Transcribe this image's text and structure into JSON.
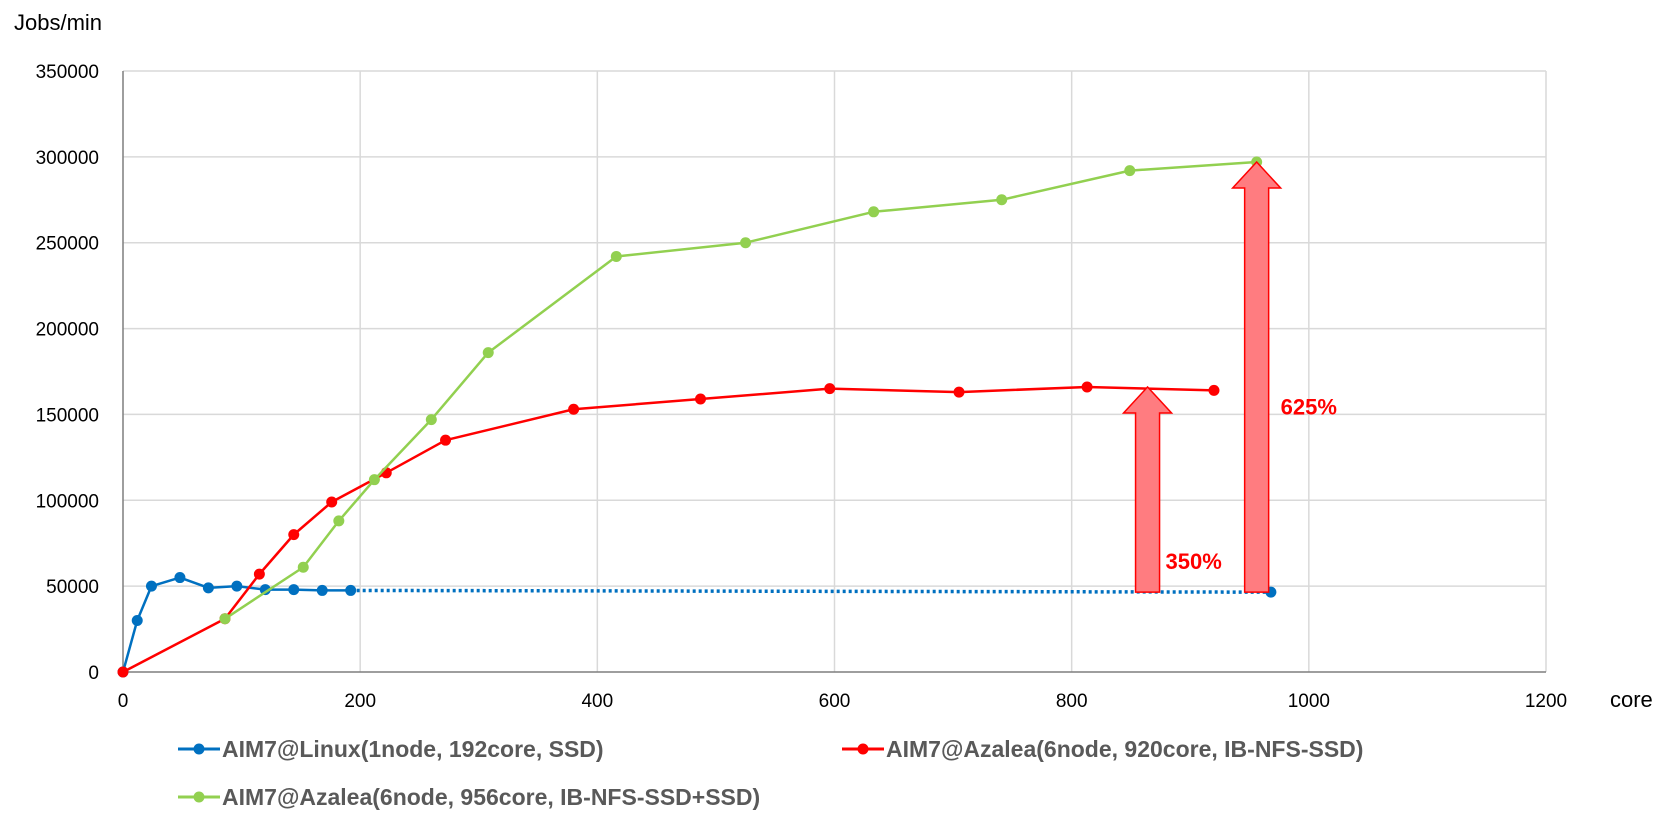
{
  "chart_data": {
    "type": "line",
    "ylabel": "Jobs/min",
    "xlabel": "core",
    "xlim": [
      0,
      1200
    ],
    "ylim": [
      0,
      350000
    ],
    "xticks": [
      0,
      200,
      400,
      600,
      800,
      1000,
      1200
    ],
    "yticks": [
      0,
      50000,
      100000,
      150000,
      200000,
      250000,
      300000,
      350000
    ],
    "grid": true,
    "legend_position": "bottom",
    "series": [
      {
        "name": "AIM7@Linux(1node, 192core, SSD)",
        "color": "#0070c0",
        "x": [
          0,
          12,
          24,
          48,
          72,
          96,
          120,
          144,
          168,
          192
        ],
        "y": [
          0,
          30000,
          50000,
          55000,
          49000,
          50000,
          48000,
          48000,
          47500,
          47500
        ],
        "extension": {
          "style": "dotted",
          "x": [
            192,
            968
          ],
          "y": [
            47500,
            46500
          ]
        }
      },
      {
        "name": "AIM7@Azalea(6node, 920core, IB-NFS-SSD)",
        "color": "#ff0000",
        "x": [
          0,
          86,
          115,
          144,
          176,
          222,
          272,
          380,
          487,
          596,
          705,
          813,
          920
        ],
        "y": [
          0,
          31000,
          57000,
          80000,
          99000,
          116000,
          135000,
          153000,
          159000,
          165000,
          163000,
          166000,
          164000
        ]
      },
      {
        "name": "AIM7@Azalea(6node, 956core, IB-NFS-SSD+SSD)",
        "color": "#92d050",
        "x": [
          86,
          152,
          182,
          212,
          260,
          308,
          416,
          525,
          633,
          741,
          849,
          956
        ],
        "y": [
          31000,
          61000,
          88000,
          112000,
          147000,
          186000,
          242000,
          250000,
          268000,
          275000,
          292000,
          297000
        ]
      }
    ],
    "annotations": [
      {
        "label": "350%",
        "x": 864,
        "y_from": 46500,
        "y_to": 166000
      },
      {
        "label": "625%",
        "x": 956,
        "y_from": 46500,
        "y_to": 297000
      }
    ]
  }
}
